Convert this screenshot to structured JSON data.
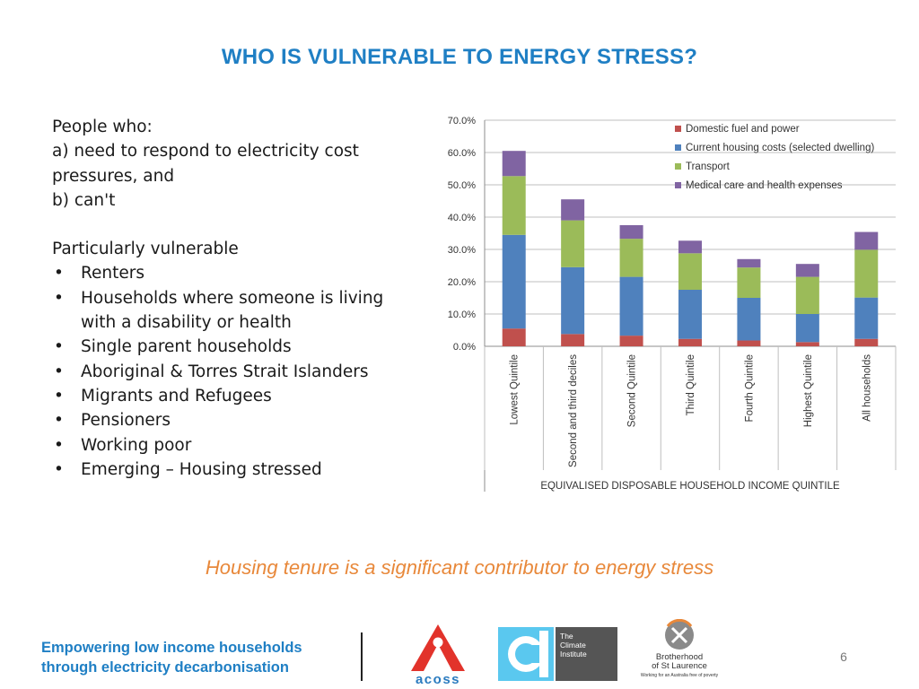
{
  "slide": {
    "title": "WHO IS VULNERABLE TO ENERGY STRESS?",
    "intro_lines": [
      "People who:",
      "a) need to respond to electricity cost",
      "pressures, and",
      "b) can't"
    ],
    "vulnerable_heading": "Particularly vulnerable",
    "bullets": [
      "Renters",
      "Households where someone is living with a disability or health",
      "Single parent households",
      "Aboriginal & Torres Strait Islanders",
      "Migrants and Refugees",
      "Pensioners",
      "Working poor",
      "Emerging – Housing stressed"
    ],
    "tagline": "Housing tenure is a significant contributor to energy stress",
    "footer_line1": "Empowering low income households",
    "footer_line2": "through electricity decarbonisation",
    "page_number": "6"
  },
  "logos": {
    "acoss": "acoss",
    "climate_line1": "The",
    "climate_line2": "Climate",
    "climate_line3": "Institute",
    "bsl_line1": "Brotherhood",
    "bsl_line2": "of St Laurence",
    "bsl_tagline": "Working for an Australia free of poverty"
  },
  "colors": {
    "title": "#1f7fc4",
    "tagline": "#e8883a",
    "footer": "#1f7fc4",
    "acoss_red": "#e2332b",
    "acoss_blue": "#2a7bbf",
    "climate_cyan": "#5ac8ef"
  },
  "chart_data": {
    "type": "bar",
    "stacked": true,
    "title": "",
    "xlabel": "EQUIVALISED DISPOSABLE HOUSEHOLD INCOME QUINTILE",
    "ylabel": "",
    "ylim": [
      0,
      70
    ],
    "yticks": [
      0,
      10,
      20,
      30,
      40,
      50,
      60,
      70
    ],
    "ytick_labels": [
      "0.0%",
      "10.0%",
      "20.0%",
      "30.0%",
      "40.0%",
      "50.0%",
      "60.0%",
      "70.0%"
    ],
    "categories": [
      "Lowest Quintile",
      "Second and third deciles",
      "Second Quintile",
      "Third Quintile",
      "Fourth Quintile",
      "Highest Quintile",
      "All households"
    ],
    "series": [
      {
        "name": "Domestic fuel and power",
        "color": "#c0504d",
        "values": [
          5.5,
          3.8,
          3.3,
          2.3,
          1.8,
          1.3,
          2.3
        ]
      },
      {
        "name": "Current housing costs (selected dwelling)",
        "color": "#4f81bd",
        "values": [
          29.0,
          20.7,
          18.2,
          15.2,
          13.2,
          8.7,
          12.8
        ]
      },
      {
        "name": "Transport",
        "color": "#9bbb59",
        "values": [
          18.2,
          14.5,
          11.8,
          11.3,
          9.4,
          11.5,
          14.8
        ]
      },
      {
        "name": "Medical care and health expenses",
        "color": "#8064a2",
        "values": [
          7.8,
          6.5,
          4.2,
          3.9,
          2.6,
          4.0,
          5.5
        ]
      }
    ],
    "legend_position": "top-right",
    "grid": true
  }
}
